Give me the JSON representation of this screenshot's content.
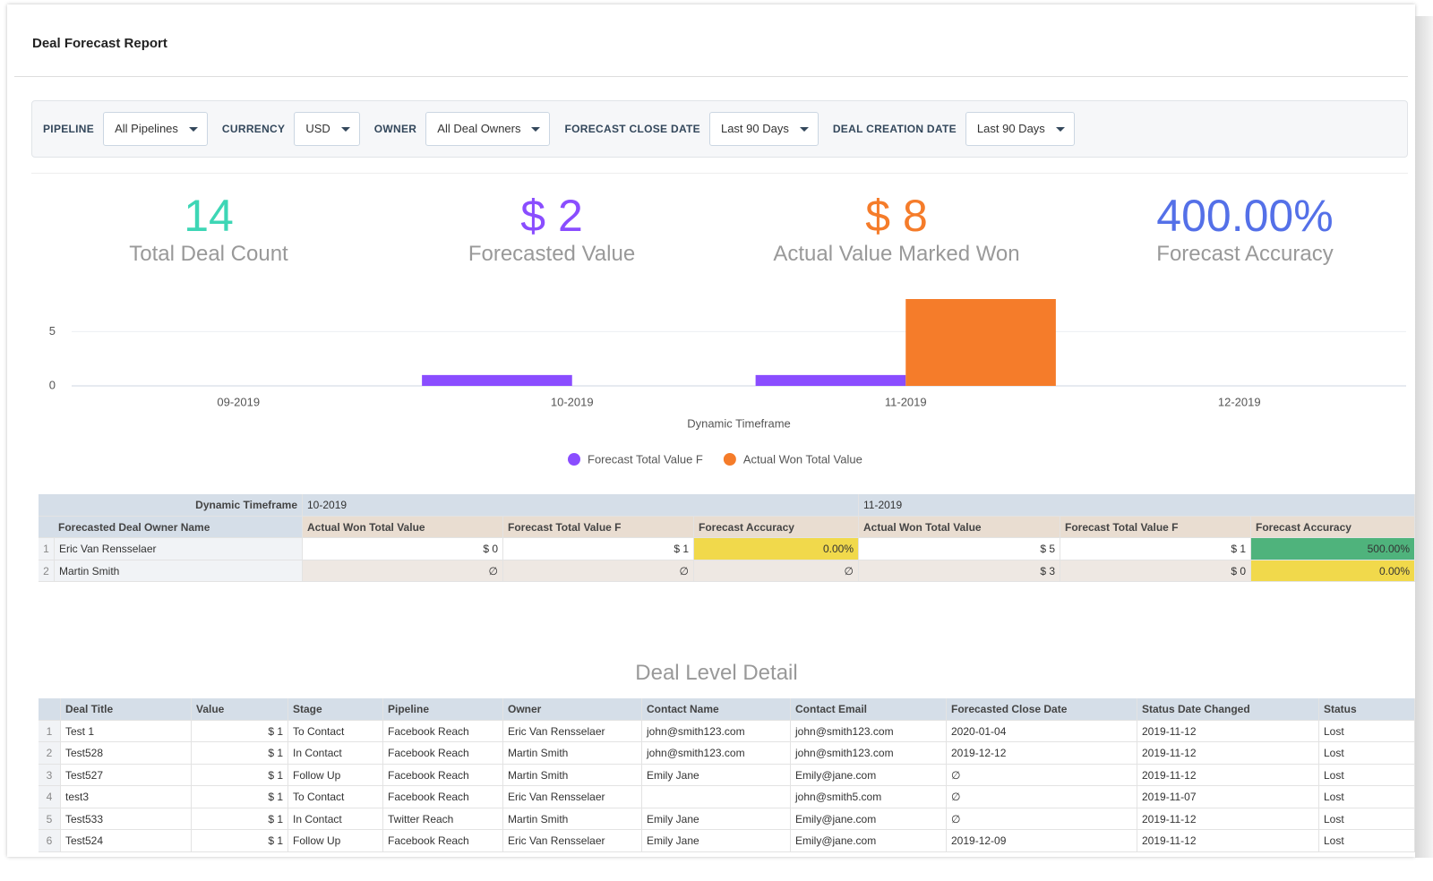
{
  "header": {
    "title": "Deal Forecast Report"
  },
  "filters": [
    {
      "label": "PIPELINE",
      "value": "All Pipelines"
    },
    {
      "label": "CURRENCY",
      "value": "USD"
    },
    {
      "label": "OWNER",
      "value": "All Deal Owners"
    },
    {
      "label": "FORECAST CLOSE DATE",
      "value": "Last 90 Days"
    },
    {
      "label": "DEAL CREATION DATE",
      "value": "Last 90 Days"
    }
  ],
  "kpis": [
    {
      "value": "14",
      "label": "Total Deal Count",
      "color": "#3dd6b5"
    },
    {
      "value": "$ 2",
      "label": "Forecasted Value",
      "color": "#8a4dff"
    },
    {
      "value": "$ 8",
      "label": "Actual Value Marked Won",
      "color": "#f57c2a"
    },
    {
      "value": "400.00%",
      "label": "Forecast Accuracy",
      "color": "#5470e8"
    }
  ],
  "chart_data": {
    "type": "bar",
    "x_label": "Dynamic Timeframe",
    "categories": [
      "09-2019",
      "10-2019",
      "11-2019",
      "12-2019"
    ],
    "series": [
      {
        "name": "Forecast Total Value F",
        "color": "#8a4dff",
        "values": [
          null,
          1,
          1,
          null
        ]
      },
      {
        "name": "Actual Won Total Value",
        "color": "#f57c2a",
        "values": [
          null,
          0,
          8,
          null
        ]
      }
    ],
    "ylim": [
      0,
      8
    ],
    "yticks": [
      0,
      5
    ],
    "grid": true,
    "legend": "bottom"
  },
  "pivot": {
    "corner_top": "Dynamic Timeframe",
    "periods": [
      "10-2019",
      "11-2019"
    ],
    "corner": "Forecasted Deal Owner Name",
    "measures": [
      "Actual Won Total Value",
      "Forecast Total Value F",
      "Forecast Accuracy"
    ],
    "rows": [
      {
        "index": "1",
        "name": "Eric Van Rensselaer",
        "cells": [
          "$ 0",
          "$ 1",
          "0.00%",
          "$ 5",
          "$ 1",
          "500.00%"
        ]
      },
      {
        "index": "2",
        "name": "Martin Smith",
        "cells": [
          "∅",
          "∅",
          "∅",
          "$ 3",
          "$ 0",
          "0.00%"
        ]
      }
    ]
  },
  "detail": {
    "title": "Deal Level Detail",
    "columns": [
      "Deal Title",
      "Value",
      "Stage",
      "Pipeline",
      "Owner",
      "Contact Name",
      "Contact Email",
      "Forecasted Close Date",
      "Status Date Changed",
      "Status"
    ],
    "rows": [
      {
        "index": "1",
        "cells": [
          "Test 1",
          "$ 1",
          "To Contact",
          "Facebook Reach",
          "Eric Van Rensselaer",
          "john@smith123.com",
          "john@smith123.com",
          "2020-01-04",
          "2019-11-12",
          "Lost"
        ]
      },
      {
        "index": "2",
        "cells": [
          "Test528",
          "$ 1",
          "In Contact",
          "Facebook Reach",
          "Martin Smith",
          "john@smith123.com",
          "john@smith123.com",
          "2019-12-12",
          "2019-11-12",
          "Lost"
        ]
      },
      {
        "index": "3",
        "cells": [
          "Test527",
          "$ 1",
          "Follow Up",
          "Facebook Reach",
          "Martin Smith",
          "Emily Jane",
          "Emily@jane.com",
          "∅",
          "2019-11-12",
          "Lost"
        ]
      },
      {
        "index": "4",
        "cells": [
          "test3",
          "$ 1",
          "To Contact",
          "Facebook Reach",
          "Eric Van Rensselaer",
          null,
          "john@smith5.com",
          "∅",
          "2019-11-07",
          "Lost"
        ]
      },
      {
        "index": "5",
        "cells": [
          "Test533",
          "$ 1",
          "In Contact",
          "Twitter Reach",
          "Martin Smith",
          "Emily Jane",
          "Emily@jane.com",
          "∅",
          "2019-11-12",
          "Lost"
        ]
      },
      {
        "index": "6",
        "cells": [
          "Test524",
          "$ 1",
          "Follow Up",
          "Facebook Reach",
          "Eric Van Rensselaer",
          "Emily Jane",
          "Emily@jane.com",
          "2019-12-09",
          "2019-11-12",
          "Lost"
        ]
      }
    ]
  }
}
